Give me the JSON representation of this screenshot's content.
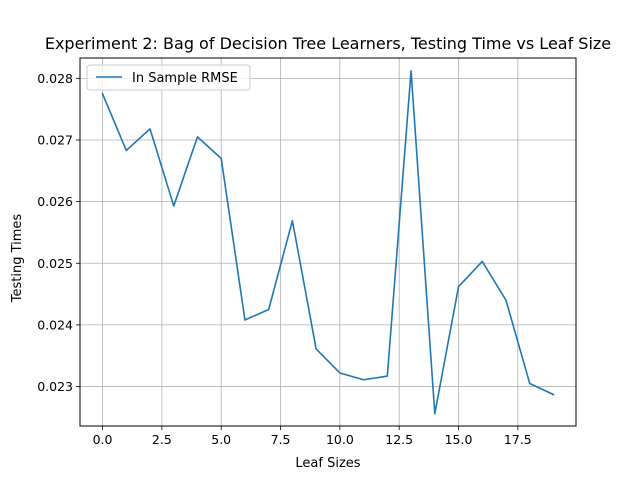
{
  "chart_data": {
    "type": "line",
    "title": "Experiment 2: Bag of Decision Tree Learners, Testing Time vs Leaf Size",
    "xlabel": "Leaf Sizes",
    "ylabel": "Testing Times",
    "xlim": [
      -0.95,
      19.95
    ],
    "ylim": [
      0.02236,
      0.02833
    ],
    "xticks": [
      0.0,
      2.5,
      5.0,
      7.5,
      10.0,
      12.5,
      15.0,
      17.5
    ],
    "xtick_labels": [
      "0.0",
      "2.5",
      "5.0",
      "7.5",
      "10.0",
      "12.5",
      "15.0",
      "17.5"
    ],
    "yticks": [
      0.023,
      0.024,
      0.025,
      0.026,
      0.027,
      0.028
    ],
    "ytick_labels": [
      "0.023",
      "0.024",
      "0.025",
      "0.026",
      "0.027",
      "0.028"
    ],
    "grid": true,
    "legend_position": "upper-left",
    "series": [
      {
        "name": "In Sample RMSE",
        "color": "#1f77b4",
        "x": [
          0,
          1,
          2,
          3,
          4,
          5,
          6,
          7,
          8,
          9,
          10,
          11,
          12,
          13,
          14,
          15,
          16,
          17,
          18,
          19
        ],
        "y": [
          0.02775,
          0.02683,
          0.02718,
          0.02593,
          0.02705,
          0.0267,
          0.02408,
          0.02425,
          0.02569,
          0.02361,
          0.02322,
          0.02311,
          0.02317,
          0.02812,
          0.02256,
          0.02462,
          0.02503,
          0.0244,
          0.02305,
          0.02287
        ]
      }
    ]
  }
}
